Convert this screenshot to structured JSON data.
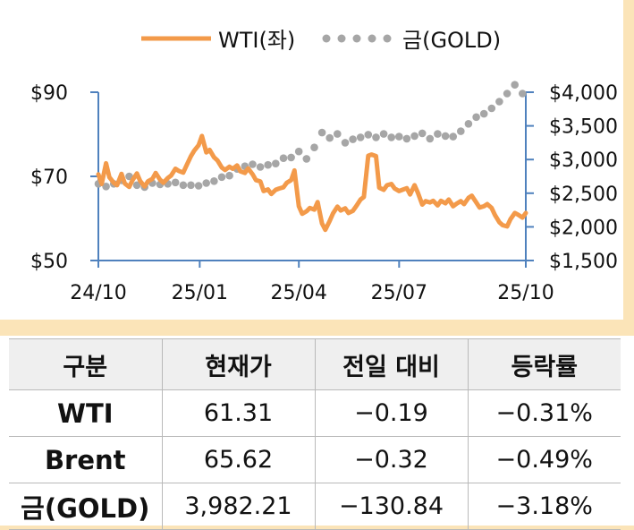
{
  "chart_data": {
    "type": "line",
    "legend_position": "top",
    "grid": false,
    "x_ticks": [
      "24/10",
      "25/01",
      "25/04",
      "25/07",
      "25/10"
    ],
    "y_left": {
      "ticks": [
        "$90",
        "$70",
        "$50"
      ],
      "range": [
        50,
        90
      ]
    },
    "y_right": {
      "ticks": [
        "$4,000",
        "$3,500",
        "$3,000",
        "$2,500",
        "$2,000",
        "$1,500"
      ],
      "range": [
        1500,
        4000
      ]
    },
    "series": [
      {
        "name": "WTI(좌)",
        "axis": "left",
        "color": "#f39a4a",
        "style": "solid",
        "x": [
          "2024-10-01",
          "2024-10-04",
          "2024-10-08",
          "2024-10-11",
          "2024-10-15",
          "2024-10-18",
          "2024-10-22",
          "2024-10-25",
          "2024-10-29",
          "2024-11-01",
          "2024-11-05",
          "2024-11-08",
          "2024-11-12",
          "2024-11-15",
          "2024-11-19",
          "2024-11-22",
          "2024-11-26",
          "2024-11-29",
          "2024-12-03",
          "2024-12-06",
          "2024-12-10",
          "2024-12-13",
          "2024-12-17",
          "2024-12-20",
          "2024-12-24",
          "2024-12-27",
          "2024-12-31",
          "2025-01-03",
          "2025-01-07",
          "2025-01-10",
          "2025-01-14",
          "2025-01-17",
          "2025-01-21",
          "2025-01-24",
          "2025-01-28",
          "2025-01-31",
          "2025-02-04",
          "2025-02-07",
          "2025-02-11",
          "2025-02-14",
          "2025-02-18",
          "2025-02-21",
          "2025-02-25",
          "2025-02-28",
          "2025-03-04",
          "2025-03-07",
          "2025-03-11",
          "2025-03-14",
          "2025-03-18",
          "2025-03-21",
          "2025-03-25",
          "2025-03-28",
          "2025-04-01",
          "2025-04-04",
          "2025-04-08",
          "2025-04-11",
          "2025-04-15",
          "2025-04-18",
          "2025-04-22",
          "2025-04-25",
          "2025-04-29",
          "2025-05-02",
          "2025-05-06",
          "2025-05-09",
          "2025-05-13",
          "2025-05-16",
          "2025-05-20",
          "2025-05-23",
          "2025-05-27",
          "2025-05-30",
          "2025-06-03",
          "2025-06-06",
          "2025-06-10",
          "2025-06-13",
          "2025-06-17",
          "2025-06-20",
          "2025-06-24",
          "2025-06-27",
          "2025-07-01",
          "2025-07-04",
          "2025-07-08",
          "2025-07-11",
          "2025-07-15",
          "2025-07-18",
          "2025-07-22",
          "2025-07-25",
          "2025-07-29",
          "2025-08-01",
          "2025-08-05",
          "2025-08-08",
          "2025-08-12",
          "2025-08-15",
          "2025-08-19",
          "2025-08-22",
          "2025-08-26",
          "2025-08-29",
          "2025-09-02",
          "2025-09-05",
          "2025-09-09",
          "2025-09-12",
          "2025-09-16",
          "2025-09-19",
          "2025-09-23",
          "2025-09-26",
          "2025-09-30",
          "2025-10-03",
          "2025-10-07",
          "2025-10-10",
          "2025-10-14",
          "2025-10-17",
          "2025-10-21",
          "2025-10-24"
        ],
        "values": [
          70.5,
          68.2,
          73.1,
          69.8,
          68.5,
          67.9,
          70.6,
          68.3,
          67.5,
          69.1,
          70.7,
          68.9,
          67.6,
          68.8,
          69.4,
          70.8,
          69.2,
          68.5,
          69.6,
          70.2,
          71.8,
          71.3,
          70.9,
          72.6,
          74.8,
          76.1,
          77.4,
          79.6,
          75.7,
          76.3,
          74.5,
          73.8,
          72.1,
          71.5,
          72.3,
          71.8,
          72.6,
          71.2,
          70.8,
          71.9,
          70.5,
          69.1,
          68.8,
          66.5,
          66.9,
          65.8,
          66.8,
          67.1,
          67.4,
          68.5,
          69.1,
          71.4,
          62.9,
          61.1,
          61.7,
          62.5,
          62.1,
          63.9,
          58.8,
          57.3,
          59.4,
          61.2,
          62.8,
          61.9,
          62.4,
          61.3,
          61.8,
          62.9,
          64.5,
          65.1,
          74.9,
          75.2,
          74.8,
          67.3,
          66.8,
          67.9,
          68.2,
          67.1,
          66.5,
          66.8,
          67.2,
          65.7,
          67.9,
          66.1,
          63.3,
          64.1,
          63.8,
          64.2,
          63.1,
          64.2,
          63.6,
          64.5,
          62.9,
          63.5,
          64.1,
          63.4,
          64.9,
          65.4,
          63.8,
          62.6,
          62.9,
          63.4,
          62.5,
          60.8,
          59.1,
          58.4,
          58.1,
          59.8,
          61.3,
          60.9,
          60.2,
          61.3
        ]
      },
      {
        "name": "금(GOLD)",
        "axis": "right",
        "color": "#a6a6a6",
        "style": "dotted",
        "x": [
          "2024-10-01",
          "2024-10-08",
          "2024-10-15",
          "2024-10-22",
          "2024-10-29",
          "2024-11-05",
          "2024-11-12",
          "2024-11-19",
          "2024-11-26",
          "2024-12-03",
          "2024-12-10",
          "2024-12-17",
          "2024-12-24",
          "2024-12-31",
          "2025-01-07",
          "2025-01-14",
          "2025-01-21",
          "2025-01-28",
          "2025-02-04",
          "2025-02-11",
          "2025-02-18",
          "2025-02-25",
          "2025-03-04",
          "2025-03-11",
          "2025-03-18",
          "2025-03-25",
          "2025-04-01",
          "2025-04-08",
          "2025-04-15",
          "2025-04-22",
          "2025-04-29",
          "2025-05-06",
          "2025-05-13",
          "2025-05-20",
          "2025-05-27",
          "2025-06-03",
          "2025-06-10",
          "2025-06-17",
          "2025-06-24",
          "2025-07-01",
          "2025-07-08",
          "2025-07-15",
          "2025-07-22",
          "2025-07-29",
          "2025-08-05",
          "2025-08-12",
          "2025-08-19",
          "2025-08-26",
          "2025-09-02",
          "2025-09-09",
          "2025-09-16",
          "2025-09-23",
          "2025-09-30",
          "2025-10-07",
          "2025-10-14",
          "2025-10-21"
        ],
        "values": [
          2640,
          2600,
          2640,
          2690,
          2750,
          2620,
          2590,
          2650,
          2630,
          2640,
          2660,
          2620,
          2620,
          2610,
          2650,
          2680,
          2740,
          2760,
          2860,
          2900,
          2930,
          2890,
          2920,
          2940,
          3020,
          3030,
          3120,
          3010,
          3180,
          3400,
          3320,
          3380,
          3250,
          3300,
          3330,
          3370,
          3330,
          3380,
          3330,
          3340,
          3310,
          3350,
          3390,
          3310,
          3380,
          3350,
          3340,
          3420,
          3530,
          3630,
          3680,
          3760,
          3860,
          3980,
          4110,
          3980
        ]
      }
    ]
  },
  "table": {
    "headers": [
      "구분",
      "현재가",
      "전일 대비",
      "등락률"
    ],
    "rows": [
      [
        "WTI",
        "61.31",
        "−0.19",
        "−0.31%"
      ],
      [
        "Brent",
        "65.62",
        "−0.32",
        "−0.49%"
      ],
      [
        "금(GOLD)",
        "3,982.21",
        "−130.84",
        "−3.18%"
      ]
    ]
  },
  "colors": {
    "axis": "#4f81bd",
    "header_bg": "#efefef",
    "border": "#b9b9b9",
    "panel_bg": "#fbe4b8"
  }
}
